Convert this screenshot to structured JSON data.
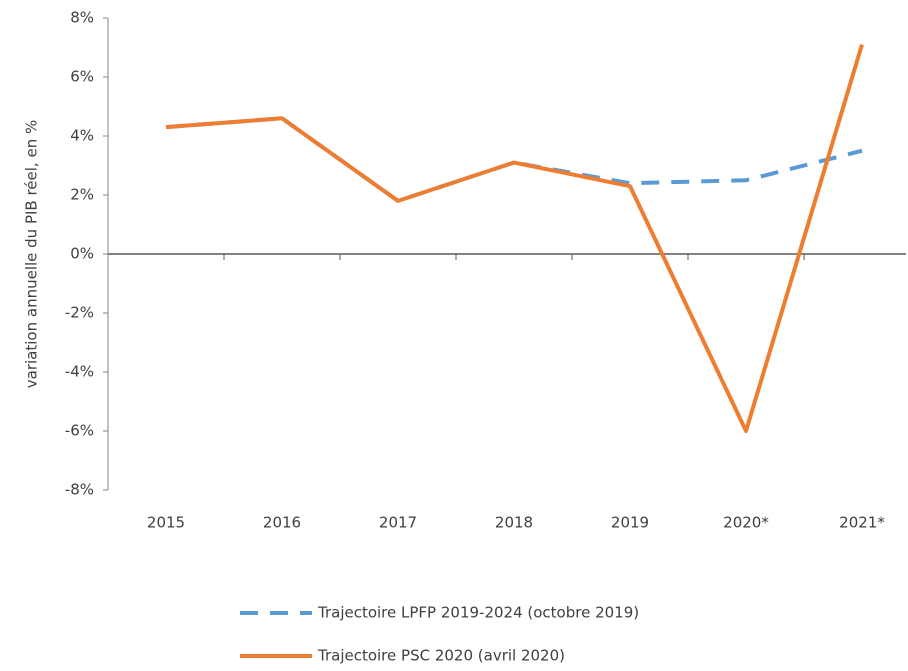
{
  "chart_data": {
    "type": "line",
    "y_axis_label": "variation annuelle du PIB réel, en %",
    "categories": [
      "2015",
      "2016",
      "2017",
      "2018",
      "2019",
      "2020*",
      "2021*"
    ],
    "series": [
      {
        "name": "Trajectoire LPFP 2019-2024 (octobre 2019)",
        "color": "#5b9bd5",
        "dashed": true,
        "values": [
          4.3,
          4.6,
          1.8,
          3.1,
          2.4,
          2.5,
          3.5
        ]
      },
      {
        "name": "Trajectoire PSC 2020 (avril 2020)",
        "color": "#ed7d31",
        "dashed": false,
        "values": [
          4.3,
          4.6,
          1.8,
          3.1,
          2.3,
          -6.0,
          7.1
        ]
      }
    ],
    "ylim": [
      -8,
      8
    ],
    "yticks": [
      {
        "value": -8,
        "label": "-8%"
      },
      {
        "value": -6,
        "label": "-6%"
      },
      {
        "value": -4,
        "label": "-4%"
      },
      {
        "value": -2,
        "label": "-2%"
      },
      {
        "value": 0,
        "label": "0%"
      },
      {
        "value": 2,
        "label": "2%"
      },
      {
        "value": 4,
        "label": "4%"
      },
      {
        "value": 6,
        "label": "6%"
      },
      {
        "value": 8,
        "label": "8%"
      }
    ],
    "grid": false,
    "legend": "bottom"
  }
}
